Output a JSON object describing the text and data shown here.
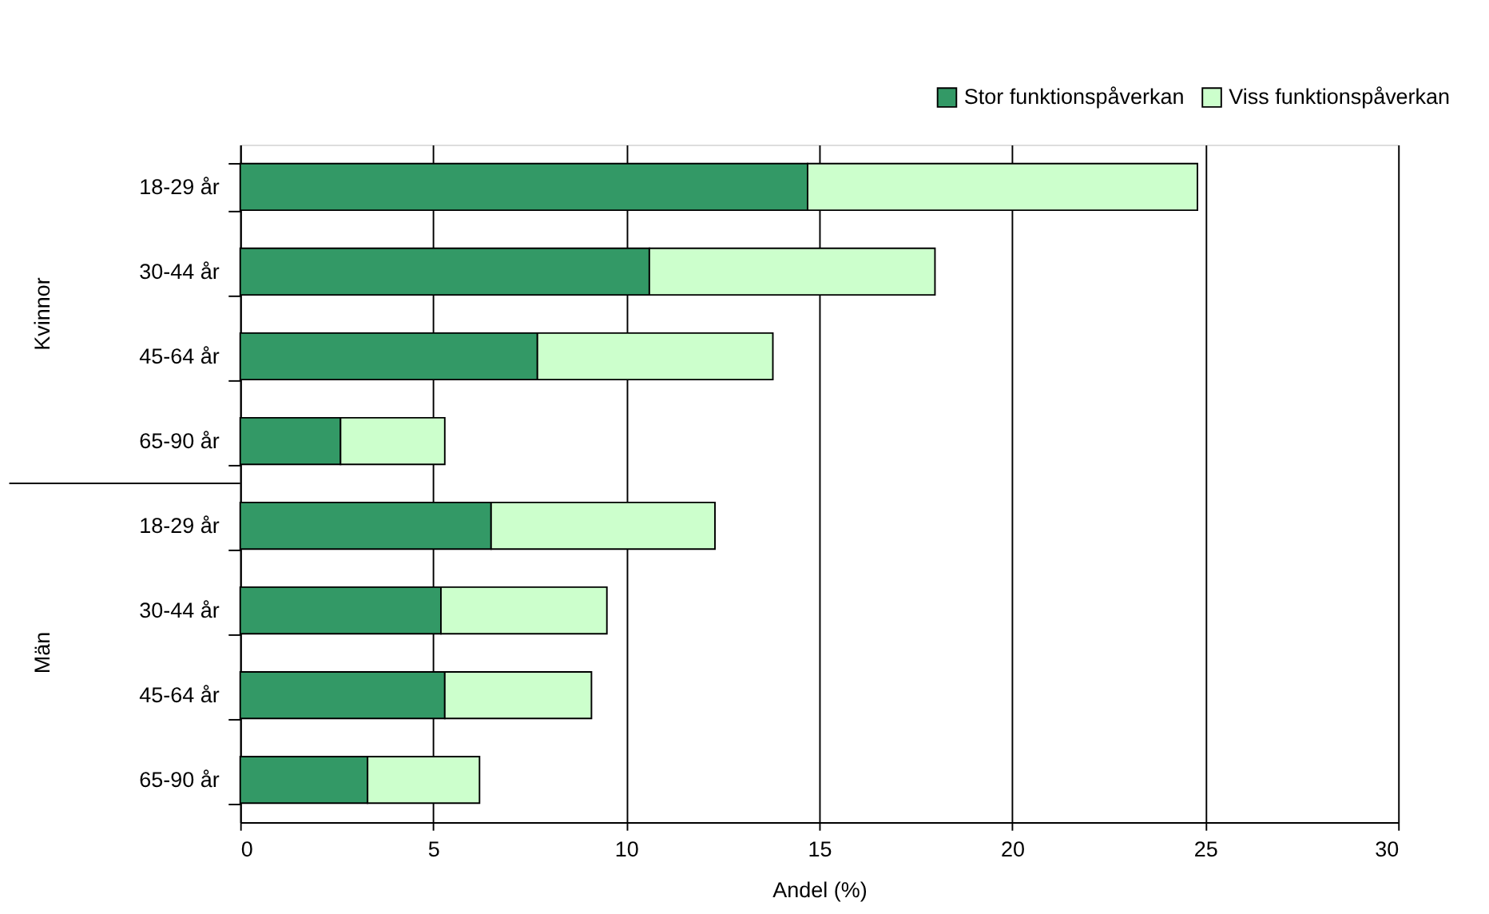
{
  "chart_data": {
    "type": "bar",
    "orientation": "horizontal",
    "stacked": true,
    "xlabel": "Andel (%)",
    "categories": [
      "18-29 år",
      "30-44 år",
      "45-64 år",
      "65-90 år",
      "18-29 år",
      "30-44 år",
      "45-64 år",
      "65-90 år"
    ],
    "series": [
      {
        "name": "Stor funktionspåverkan",
        "color": "#339966",
        "values": [
          14.7,
          10.6,
          7.7,
          2.6,
          6.5,
          5.2,
          5.3,
          3.3
        ]
      },
      {
        "name": "Viss funktionspåverkan",
        "color": "#ccffcc",
        "values": [
          10.1,
          7.4,
          6.1,
          2.7,
          5.8,
          4.3,
          3.8,
          2.9
        ]
      }
    ],
    "annotations": [
      "Kvinnor",
      "Män"
    ],
    "xlim": [
      0,
      30
    ],
    "xticks": [
      0,
      5,
      10,
      15,
      20,
      25,
      30
    ],
    "grid": "x",
    "legend": "top right"
  }
}
